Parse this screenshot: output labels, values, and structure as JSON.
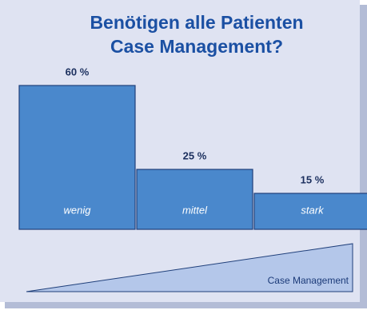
{
  "chart_data": {
    "type": "bar",
    "title": [
      "Benötigen alle Patienten",
      "Case Management?"
    ],
    "categories": [
      "wenig",
      "mittel",
      "stark"
    ],
    "values": [
      60,
      25,
      15
    ],
    "value_labels": [
      "60 %",
      "25 %",
      "15 %"
    ],
    "color": "#4a88cc",
    "annotation": "Case Management"
  }
}
